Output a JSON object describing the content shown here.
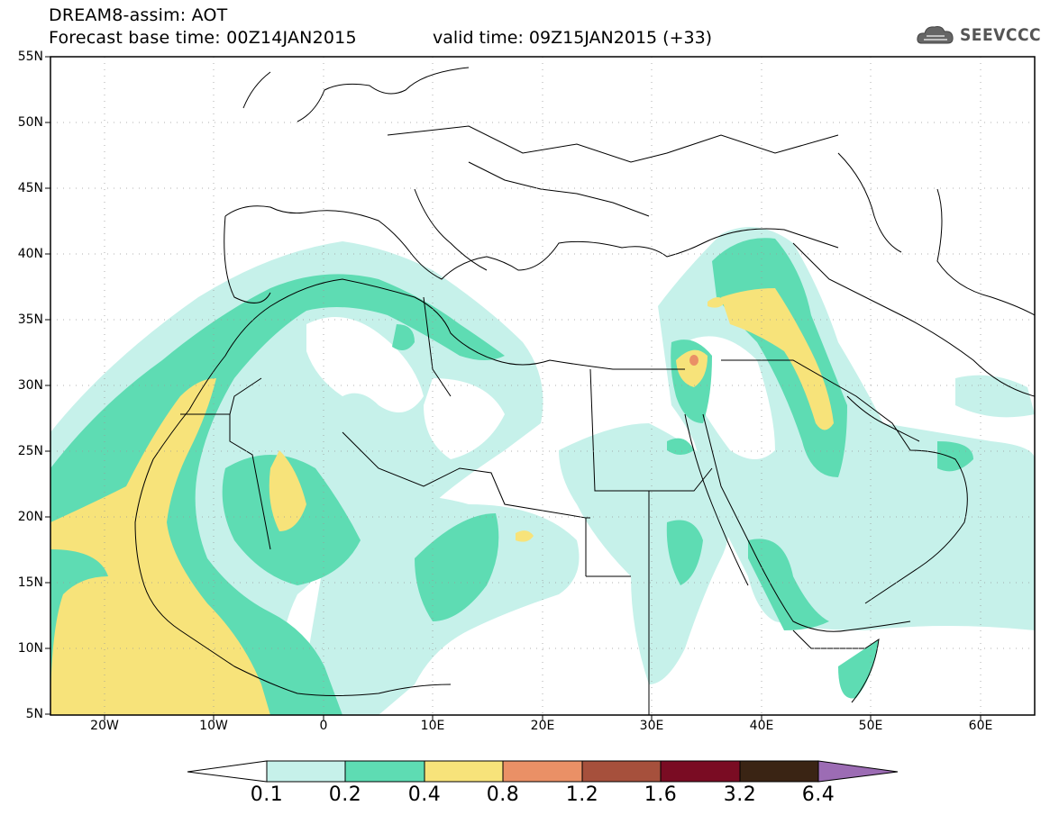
{
  "header": {
    "title_line1": "DREAM8-assim: AOT",
    "title_line2": "Forecast base time: 00Z14JAN2015",
    "valid_time": "valid time: 09Z15JAN2015 (+33)",
    "logo_text": "SEEVCCC"
  },
  "map": {
    "lat_labels": [
      "55N",
      "50N",
      "45N",
      "40N",
      "35N",
      "30N",
      "25N",
      "20N",
      "15N",
      "10N",
      "5N"
    ],
    "lon_labels": [
      "20W",
      "10W",
      "0",
      "10E",
      "20E",
      "30E",
      "40E",
      "50E",
      "60E"
    ]
  },
  "legend": {
    "labels": [
      "0.1",
      "0.2",
      "0.4",
      "0.8",
      "1.2",
      "1.6",
      "3.2",
      "6.4"
    ],
    "colors": {
      "below": "#ffffff",
      "c1": "#c6f1ea",
      "c2": "#5edcb3",
      "c3": "#f7e37a",
      "c4": "#ea9066",
      "c5": "#a6503c",
      "c6": "#7a0c23",
      "c7": "#3a2414",
      "above": "#9c6cb4"
    }
  }
}
